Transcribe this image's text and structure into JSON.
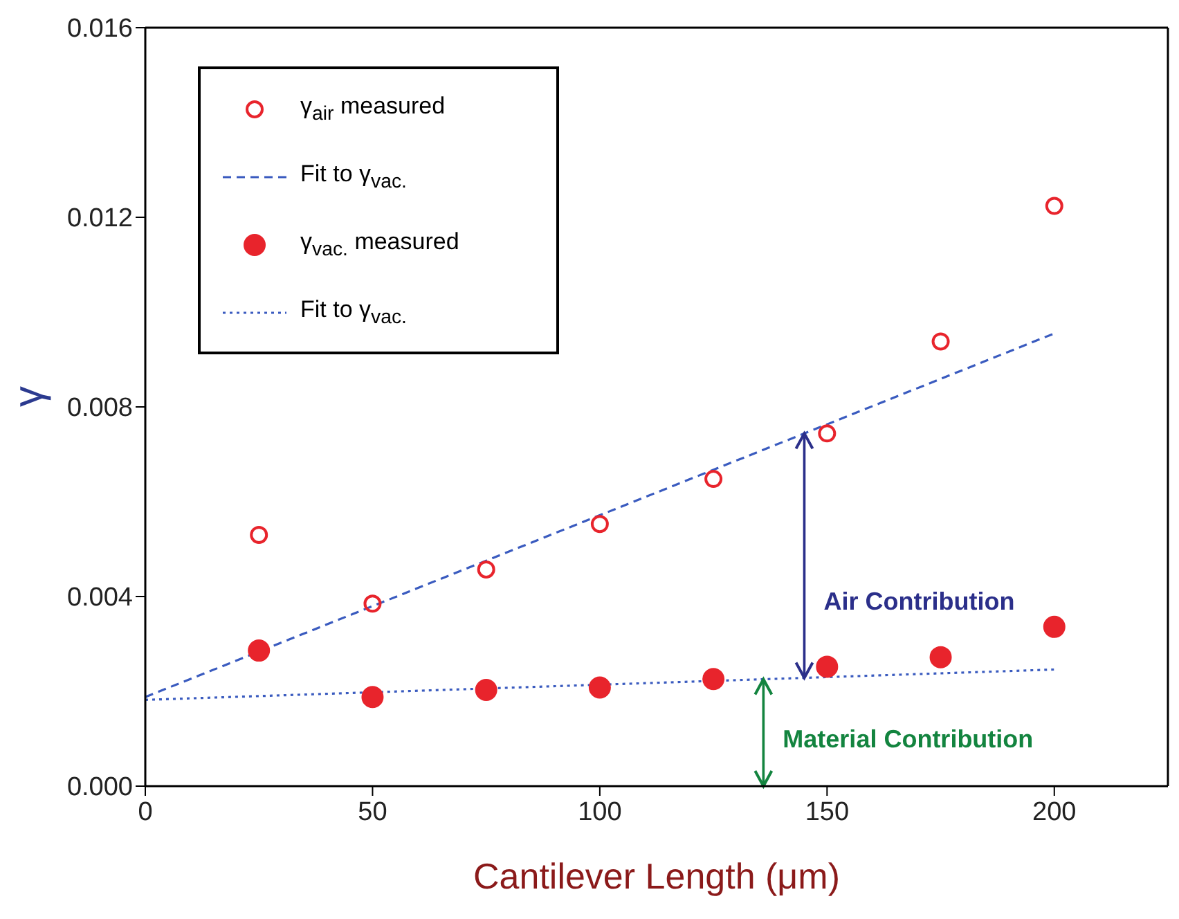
{
  "chart_data": {
    "type": "scatter",
    "xlabel": "Cantilever Length (μm)",
    "ylabel": "γ",
    "xlim": [
      0,
      225
    ],
    "xticks": [
      0,
      50,
      100,
      150,
      200
    ],
    "ylim": [
      0,
      0.016
    ],
    "yticks": [
      {
        "value": 0,
        "label": "0.000"
      },
      {
        "value": 0.004,
        "label": "0.004"
      },
      {
        "value": 0.008,
        "label": "0.008"
      },
      {
        "value": 0.012,
        "label": "0.012"
      },
      {
        "value": 0.016,
        "label": "0.016"
      }
    ],
    "legend": "top left",
    "series": [
      {
        "name": "γ$_{air}$ measured",
        "marker": "circle",
        "color": "#e8242c",
        "x": [
          25,
          50,
          75,
          100,
          125,
          150,
          175,
          200
        ],
        "values": [
          0.0053,
          0.00385,
          0.00457,
          0.00553,
          0.00648,
          0.00744,
          0.00938,
          0.01224
        ]
      },
      {
        "name": "Fit to γ$_{vac.}$",
        "type": "line",
        "marker": "none",
        "line_style": "dashed",
        "color": "#3a5bbf",
        "x": [
          0,
          200
        ],
        "values": [
          0.00188,
          0.00955
        ]
      },
      {
        "name": "γ$_{vac.}$ measured",
        "marker": "circle",
        "color": "#e8242c",
        "x": [
          25,
          50,
          75,
          100,
          125,
          150,
          175,
          200
        ],
        "values": [
          0.00286,
          0.00188,
          0.00203,
          0.00208,
          0.00226,
          0.00252,
          0.00272,
          0.00336
        ]
      },
      {
        "name": "Fit to γ$_{vac.}$",
        "type": "line",
        "marker": "none",
        "line_style": "dotted",
        "color": "#3a5bbf",
        "x": [
          0,
          200
        ],
        "values": [
          0.00182,
          0.00246
        ]
      }
    ],
    "annotations": [
      "Air Contribution",
      "Material Contribution"
    ]
  }
}
